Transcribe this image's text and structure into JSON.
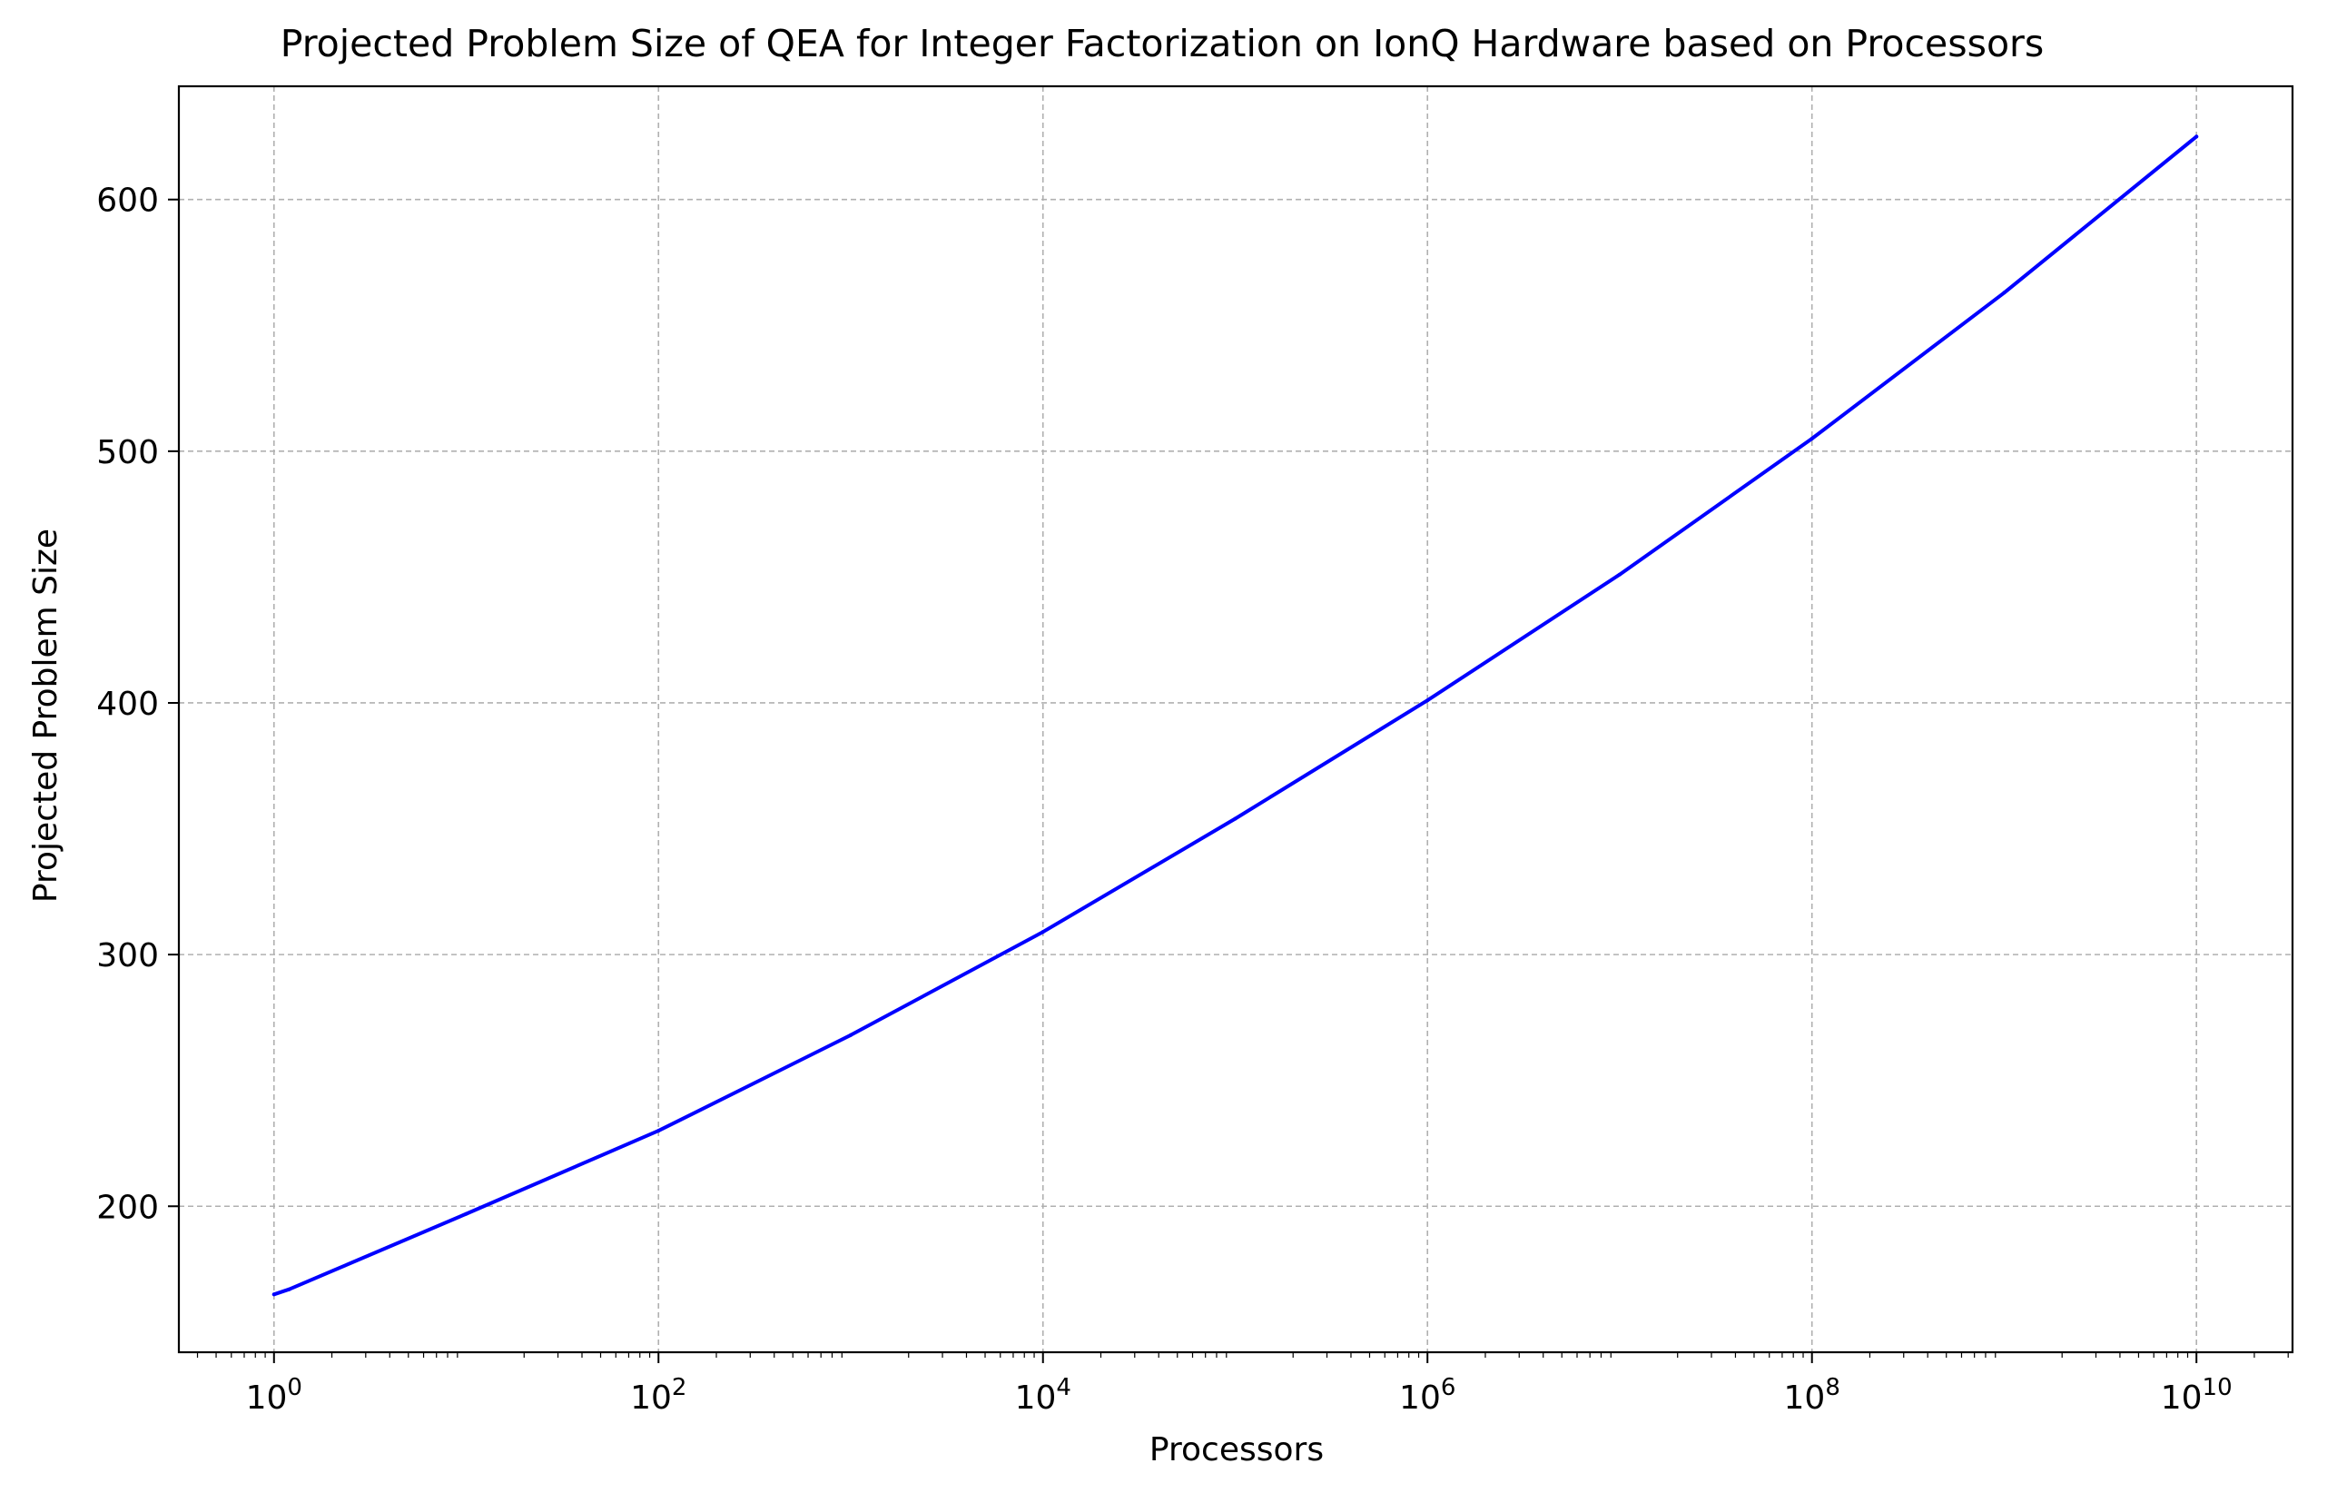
{
  "chart_data": {
    "type": "line",
    "title": "Projected Problem Size of QEA for Integer Factorization on IonQ Hardware based on Processors",
    "xlabel": "Processors",
    "ylabel": "Projected Problem Size",
    "xscale": "log",
    "xlim": [
      0.32,
      31600000000
    ],
    "ylim": [
      142,
      645
    ],
    "x_ticks": [
      {
        "value": 1,
        "base": "10",
        "exp": "0"
      },
      {
        "value": 100,
        "base": "10",
        "exp": "2"
      },
      {
        "value": 10000,
        "base": "10",
        "exp": "4"
      },
      {
        "value": 1000000,
        "base": "10",
        "exp": "6"
      },
      {
        "value": 100000000,
        "base": "10",
        "exp": "8"
      },
      {
        "value": 10000000000,
        "base": "10",
        "exp": "10"
      }
    ],
    "y_ticks": [
      200,
      300,
      400,
      500,
      600
    ],
    "grid": true,
    "grid_style": "dashed",
    "line_color": "#0000ff",
    "series": [
      {
        "x": [
          1,
          1.2,
          10,
          100,
          1000,
          10000,
          100000,
          1000000,
          10000000,
          100000000,
          1000000000,
          10000000000
        ],
        "values": [
          165,
          167,
          197,
          230,
          268,
          309,
          354,
          401,
          451,
          505,
          563,
          625
        ]
      }
    ]
  }
}
